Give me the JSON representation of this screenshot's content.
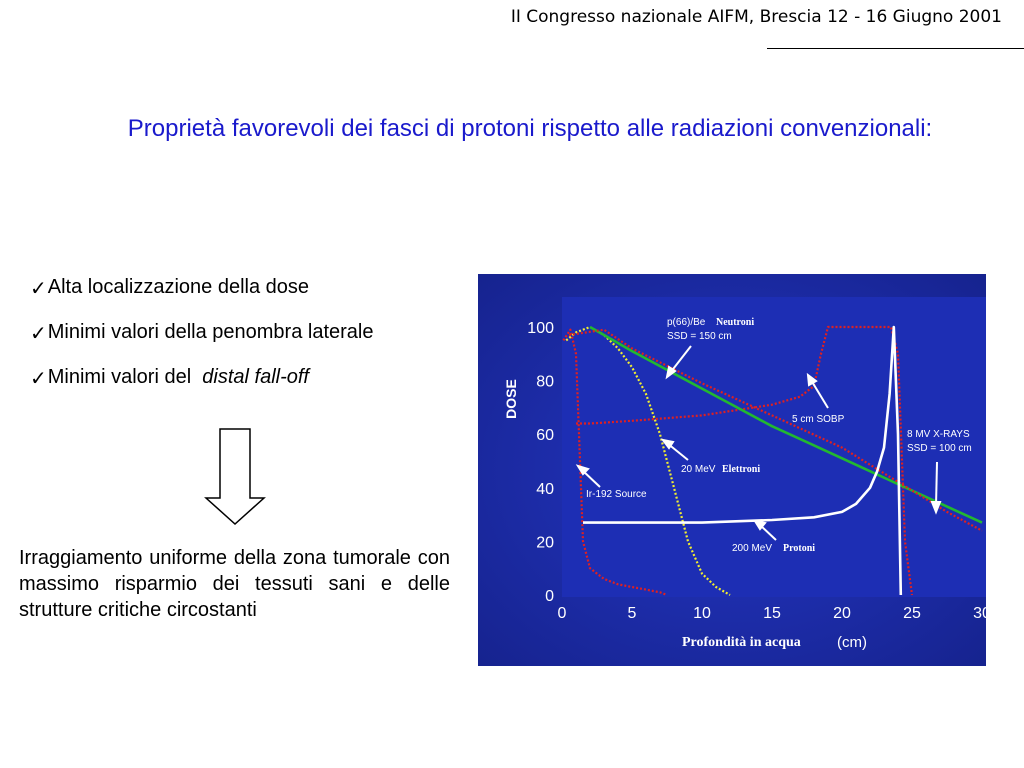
{
  "header": {
    "text": "II Congresso nazionale AIFM, Brescia 12 - 16 Giugno 2001"
  },
  "title": {
    "text": "Proprietà favorevoli dei fasci di protoni rispetto alle radiazioni convenzionali:"
  },
  "bullets": {
    "check": "✓",
    "b1": "Alta localizzazione della dose",
    "b2": "Minimi valori della penombra laterale",
    "b3_prefix": "Minimi valori del ",
    "b3_italic": "distal fall-off"
  },
  "paragraph": "Irraggiamento uniforme della zona tumorale con massimo risparmio dei tessuti sani e delle strutture critiche circostanti",
  "colors": {
    "title": "#1a1acc",
    "chart_bg": "#1a2aa8",
    "red": "#e02020",
    "green": "#22b830",
    "yellow": "#f2ee30",
    "white": "#ffffff"
  },
  "chart_data": {
    "type": "line",
    "xlabel": "Profondità in acqua",
    "xlabel_unit": "(cm)",
    "ylabel": "DOSE",
    "xlim": [
      0,
      30
    ],
    "ylim": [
      0,
      100
    ],
    "xticks": [
      0,
      5,
      10,
      15,
      20,
      25,
      30
    ],
    "yticks": [
      0,
      20,
      40,
      60,
      80,
      100
    ],
    "series": [
      {
        "color": "red",
        "dotted": true,
        "x": [
          0.1,
          0.6,
          1.0,
          1.5,
          2.0,
          3.0,
          4.0,
          5.0,
          6.0,
          6.5,
          7.0,
          7.5
        ],
        "y": [
          95,
          99,
          90,
          20,
          10,
          6,
          4,
          3,
          2,
          1.5,
          1,
          0
        ]
      },
      {
        "color": "yellow",
        "dotted": true,
        "x": [
          0.3,
          1.0,
          2.0,
          3.0,
          4.0,
          5.0,
          6.0,
          7.0,
          8.0,
          9.0,
          10.0,
          11.0,
          12.0
        ],
        "y": [
          95,
          98,
          100,
          97,
          92,
          85,
          75,
          60,
          40,
          20,
          8,
          3,
          0
        ]
      },
      {
        "color": "red",
        "dotted": true,
        "x": [
          1.0,
          2.0,
          5.0,
          10.0,
          15.0,
          17.0,
          18.0,
          18.5,
          19.0,
          20.0,
          22.0,
          23.5,
          24.0,
          24.5,
          25.0
        ],
        "y": [
          64,
          64,
          65,
          67,
          71,
          74,
          78,
          90,
          100,
          100,
          100,
          100,
          90,
          20,
          0
        ]
      },
      {
        "color": "green",
        "dotted": false,
        "x": [
          2.0,
          3.0,
          5.0,
          7.5,
          10.0,
          12.5,
          15.0,
          17.5,
          20.0,
          22.5,
          25.0,
          27.5,
          30.0
        ],
        "y": [
          100,
          97,
          91,
          84,
          77,
          70,
          63,
          57,
          51,
          45,
          39,
          33,
          27
        ]
      },
      {
        "color": "red",
        "dotted": true,
        "x": [
          0.5,
          3.0,
          5.0,
          10.0,
          15.0,
          20.0,
          22.5,
          25.0,
          27.5,
          30.0
        ],
        "y": [
          97,
          99,
          92,
          79,
          67,
          55,
          47,
          39,
          31,
          24
        ]
      },
      {
        "color": "white",
        "dotted": false,
        "x": [
          1.5,
          5.0,
          10.0,
          15.0,
          18.0,
          20.0,
          21.0,
          22.0,
          22.5,
          23.0,
          23.4,
          23.7,
          24.0,
          24.2
        ],
        "y": [
          27,
          27,
          27,
          28,
          29,
          31,
          34,
          40,
          46,
          55,
          75,
          100,
          60,
          0
        ]
      }
    ],
    "annotations": {
      "neutroni_main": "p(66)/Be",
      "neutroni_tag": "Neutroni",
      "neutroni_ssd": "SSD = 150 cm",
      "sobp": "5 cm SOBP",
      "xrays_main": "8 MV X-RAYS",
      "xrays_ssd": "SSD = 100 cm",
      "elettroni_main": "20 MeV",
      "elettroni_tag": "Elettroni",
      "ir_source": "Ir-192 Source",
      "protoni_main": "200 MeV",
      "protoni_tag": "Protoni"
    }
  }
}
